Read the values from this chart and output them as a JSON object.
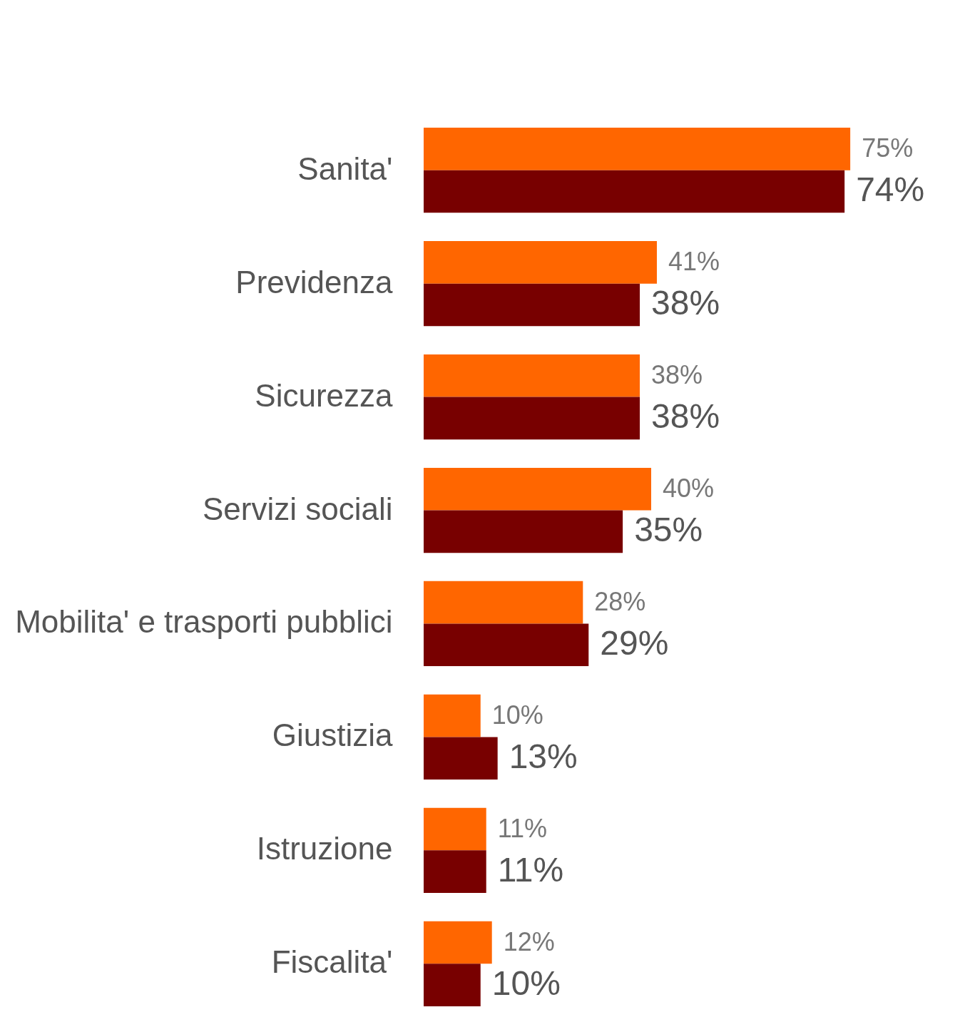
{
  "chart_data": {
    "type": "bar",
    "orientation": "horizontal",
    "categories": [
      "Sanita'",
      "Previdenza",
      "Sicurezza",
      "Servizi sociali",
      "Mobilita' e trasporti pubblici",
      "Giustizia",
      "Istruzione",
      "Fiscalita'"
    ],
    "series": [
      {
        "color": "#ff6600",
        "values": [
          75,
          41,
          38,
          40,
          28,
          10,
          11,
          12
        ],
        "value_labels": [
          "75%",
          "41%",
          "38%",
          "40%",
          "28%",
          "10%",
          "11%",
          "12%"
        ]
      },
      {
        "color": "#780000",
        "values": [
          74,
          38,
          38,
          35,
          29,
          13,
          11,
          10
        ],
        "value_labels": [
          "74%",
          "38%",
          "38%",
          "35%",
          "29%",
          "13%",
          "11%",
          "10%"
        ]
      }
    ],
    "grid": false,
    "legend": false
  }
}
